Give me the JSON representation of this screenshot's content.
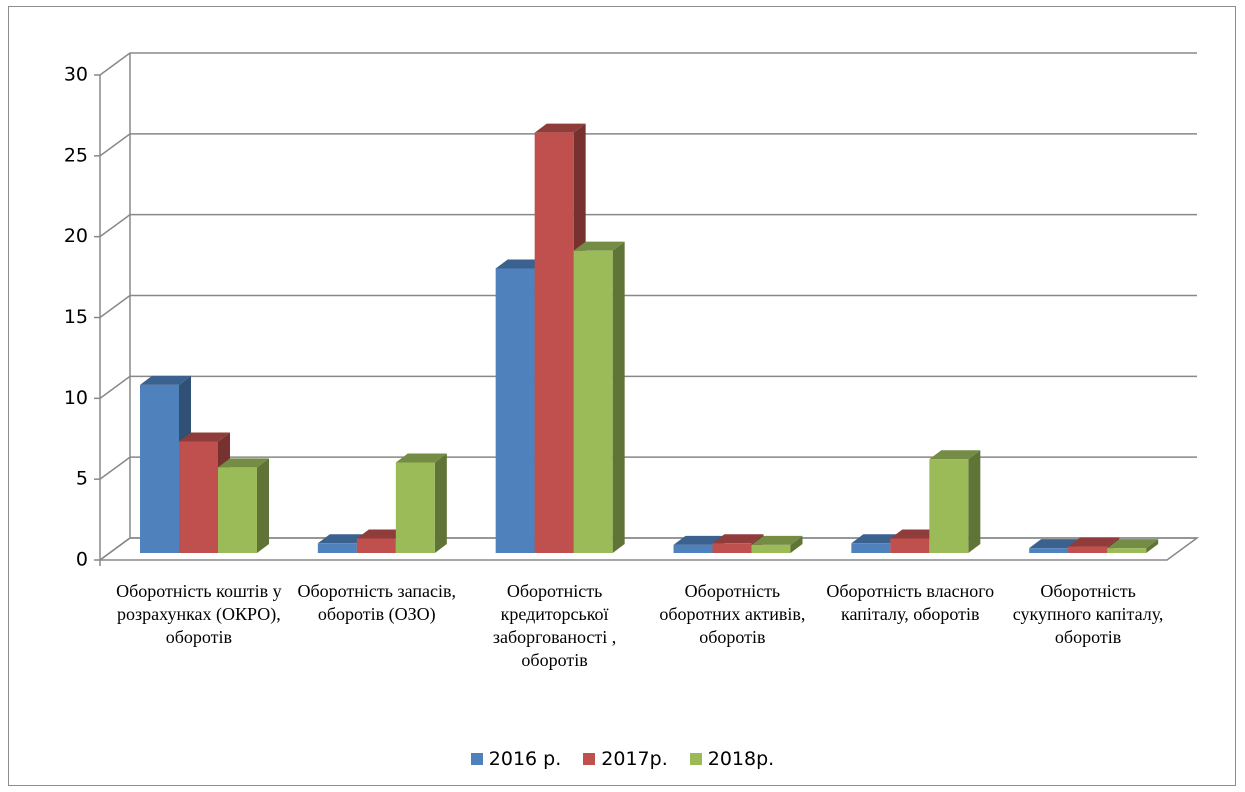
{
  "chart_data": {
    "type": "bar3d",
    "categories": [
      "Оборотність коштів у розрахунках (ОКРО), оборотів",
      "Оборотність запасів, оборотів (ОЗО)",
      "Оборотність кредиторської заборгованості , оборотів",
      "Оборотність оборотних активів, оборотів",
      "Оборотність власного капіталу, оборотів",
      "Оборотність сукупного капіталу, оборотів"
    ],
    "series": [
      {
        "name": "2016 р.",
        "color": "#4f81bd",
        "values": [
          10.4,
          0.6,
          17.6,
          0.5,
          0.6,
          0.3
        ]
      },
      {
        "name": "2017р.",
        "color": "#c0504d",
        "values": [
          6.9,
          0.9,
          26,
          0.6,
          0.9,
          0.4
        ]
      },
      {
        "name": "2018р.",
        "color": "#9bbb59",
        "values": [
          5.3,
          5.6,
          18.7,
          0.5,
          5.8,
          0.3
        ]
      }
    ],
    "ylim": [
      0,
      30
    ],
    "yticks": [
      0,
      5,
      10,
      15,
      20,
      25,
      30
    ],
    "grid": true,
    "legend": "bottom"
  }
}
